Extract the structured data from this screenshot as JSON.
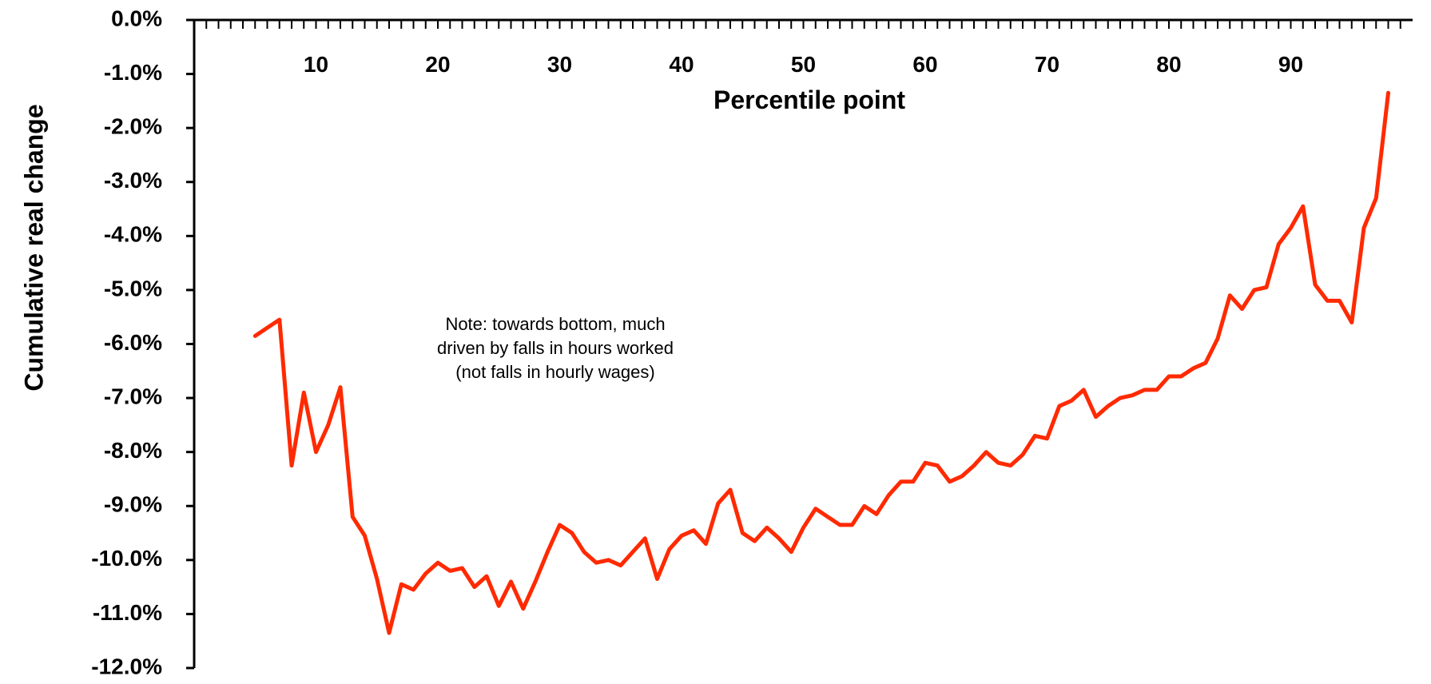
{
  "chart_data": {
    "type": "line",
    "title": "",
    "xlabel": "Percentile point",
    "ylabel": "Cumulative real change",
    "xlim": [
      0,
      100
    ],
    "ylim": [
      -12.0,
      0.0
    ],
    "x_ticks": [
      10,
      20,
      30,
      40,
      50,
      60,
      70,
      80,
      90
    ],
    "y_ticks": [
      "0.0%",
      "-1.0%",
      "-2.0%",
      "-3.0%",
      "-4.0%",
      "-5.0%",
      "-6.0%",
      "-7.0%",
      "-8.0%",
      "-9.0%",
      "-10.0%",
      "-11.0%",
      "-12.0%"
    ],
    "y_tick_values": [
      0,
      -1,
      -2,
      -3,
      -4,
      -5,
      -6,
      -7,
      -8,
      -9,
      -10,
      -11,
      -12
    ],
    "x_axis_position": "top",
    "grid": false,
    "legend": "none",
    "annotation": [
      "Note: towards bottom, much",
      "driven by falls in hours worked",
      "(not falls in hourly wages)"
    ],
    "series": [
      {
        "color": "#ff2a00",
        "x": [
          5,
          6,
          7,
          8,
          9,
          10,
          11,
          12,
          13,
          14,
          15,
          16,
          17,
          18,
          19,
          20,
          21,
          22,
          23,
          24,
          25,
          26,
          27,
          28,
          29,
          30,
          31,
          32,
          33,
          34,
          35,
          36,
          37,
          38,
          39,
          40,
          41,
          42,
          43,
          44,
          45,
          46,
          47,
          48,
          49,
          50,
          51,
          52,
          53,
          54,
          55,
          56,
          57,
          58,
          59,
          60,
          61,
          62,
          63,
          64,
          65,
          66,
          67,
          68,
          69,
          70,
          71,
          72,
          73,
          74,
          75,
          76,
          77,
          78,
          79,
          80,
          81,
          82,
          83,
          84,
          85,
          86,
          87,
          88,
          89,
          90,
          91,
          92,
          93,
          94,
          95,
          96,
          97,
          98
        ],
        "values": [
          -5.85,
          -5.7,
          -5.55,
          -8.25,
          -6.9,
          -8.0,
          -7.5,
          -6.8,
          -9.2,
          -9.55,
          -10.35,
          -11.35,
          -10.45,
          -10.55,
          -10.25,
          -10.05,
          -10.2,
          -10.15,
          -10.5,
          -10.3,
          -10.85,
          -10.4,
          -10.9,
          -10.4,
          -9.85,
          -9.35,
          -9.5,
          -9.85,
          -10.05,
          -10.0,
          -10.1,
          -9.85,
          -9.6,
          -10.35,
          -9.8,
          -9.55,
          -9.45,
          -9.7,
          -8.95,
          -8.7,
          -9.5,
          -9.65,
          -9.4,
          -9.6,
          -9.85,
          -9.4,
          -9.05,
          -9.2,
          -9.35,
          -9.35,
          -9.0,
          -9.15,
          -8.8,
          -8.55,
          -8.55,
          -8.2,
          -8.25,
          -8.55,
          -8.45,
          -8.25,
          -8.0,
          -8.2,
          -8.25,
          -8.05,
          -7.7,
          -7.75,
          -7.15,
          -7.05,
          -6.85,
          -7.35,
          -7.15,
          -7.0,
          -6.95,
          -6.85,
          -6.85,
          -6.6,
          -6.6,
          -6.45,
          -6.35,
          -5.9,
          -5.1,
          -5.35,
          -5.0,
          -4.95,
          -4.15,
          -3.85,
          -3.45,
          -4.9,
          -5.2,
          -5.2,
          -5.6,
          -3.85,
          -3.3,
          -1.35
        ]
      }
    ]
  }
}
